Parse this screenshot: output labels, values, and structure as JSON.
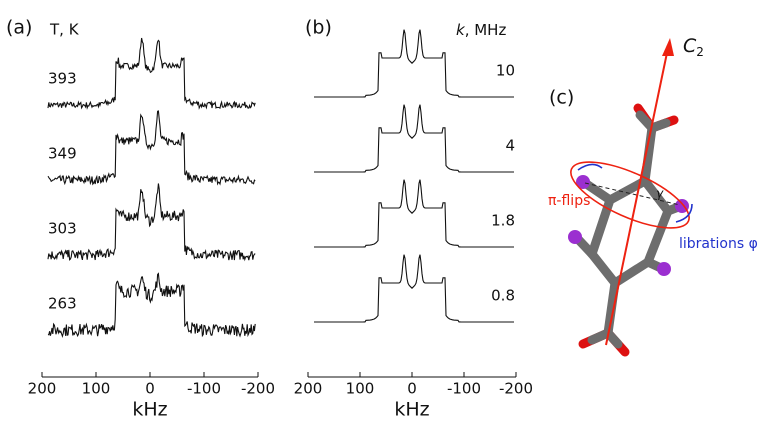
{
  "panel_a": {
    "label": "(a)",
    "header": "T, K",
    "rows": [
      "393",
      "349",
      "303",
      "263"
    ],
    "x_ticks": [
      "200",
      "100",
      "0",
      "-100",
      "-200"
    ],
    "x_label": "kHz"
  },
  "panel_b": {
    "label": "(b)",
    "header_symbol": "k",
    "header_unit": ", MHz",
    "rows": [
      "10",
      "4",
      "1.8",
      "0.8"
    ],
    "x_ticks": [
      "200",
      "100",
      "0",
      "-100",
      "-200"
    ],
    "x_label": "kHz"
  },
  "panel_c": {
    "label": "(c)",
    "axis_symbol": "C",
    "axis_subscript": "2",
    "flip_label": "π-flips",
    "libration_label": "librations φ",
    "angle_label": "γ"
  }
}
